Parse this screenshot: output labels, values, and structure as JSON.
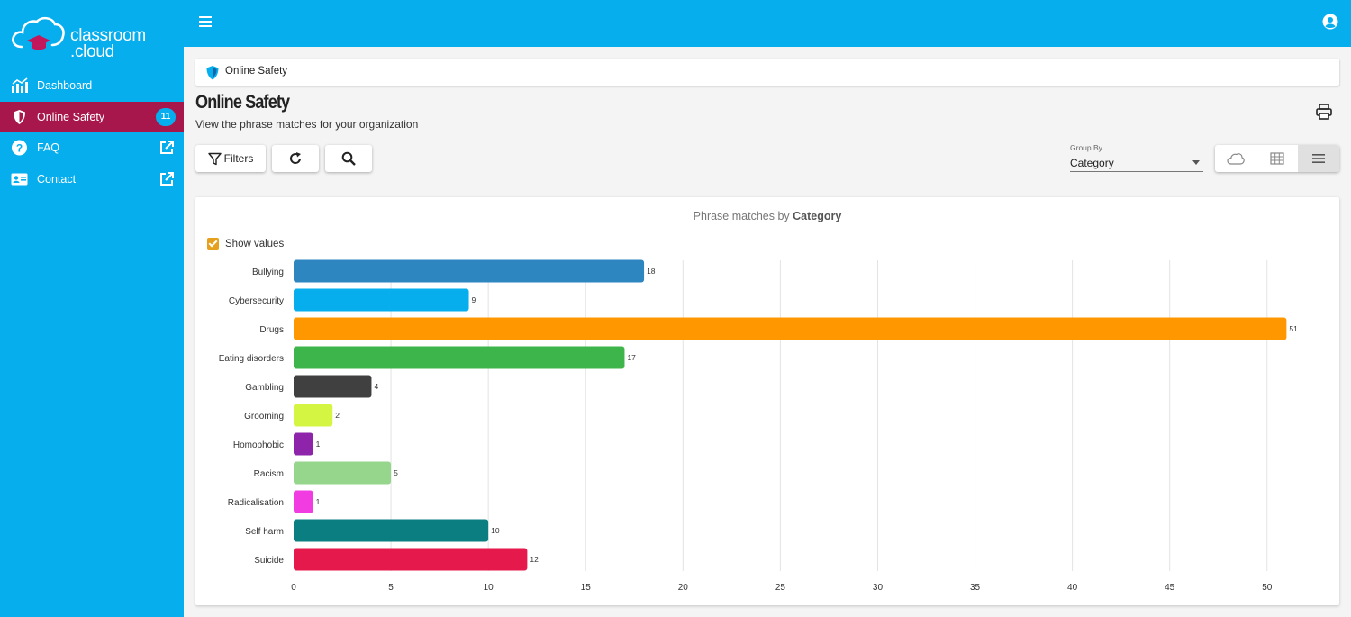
{
  "app": {
    "logo_line1": "classroom",
    "logo_line2": ".cloud"
  },
  "sidebar": {
    "items": [
      {
        "label": "Dashboard",
        "icon": "chart-icon"
      },
      {
        "label": "Online Safety",
        "icon": "shield-icon",
        "badge": "11",
        "active": true
      },
      {
        "label": "FAQ",
        "icon": "question-icon",
        "external": true
      },
      {
        "label": "Contact",
        "icon": "contact-card-icon",
        "external": true
      }
    ]
  },
  "breadcrumb": {
    "label": "Online Safety"
  },
  "page": {
    "title": "Online Safety",
    "subtitle": "View the phrase matches for your organization"
  },
  "toolbar": {
    "filters_label": "Filters"
  },
  "group_by": {
    "label": "Group By",
    "value": "Category"
  },
  "chart_card": {
    "title_prefix": "Phrase matches by",
    "title_bold": "Category",
    "show_values_label": "Show values",
    "show_values_checked": true
  },
  "colors": {
    "brand": "#06aeee",
    "active_nav": "#a8174b",
    "checkbox": "#e5a11d"
  },
  "chart_data": {
    "type": "bar",
    "orientation": "horizontal",
    "categories": [
      "Bullying",
      "Cybersecurity",
      "Drugs",
      "Eating disorders",
      "Gambling",
      "Grooming",
      "Homophobic",
      "Racism",
      "Radicalisation",
      "Self harm",
      "Suicide"
    ],
    "values": [
      18,
      9,
      51,
      17,
      4,
      2,
      1,
      5,
      1,
      10,
      12
    ],
    "colors": [
      "#2e86c1",
      "#06aeee",
      "#ff9800",
      "#3db54a",
      "#404040",
      "#d4f542",
      "#8e24aa",
      "#96d68c",
      "#f03ce0",
      "#0a7e80",
      "#e5194b"
    ],
    "xticks": [
      0,
      5,
      10,
      15,
      20,
      25,
      30,
      35,
      40,
      45,
      50
    ],
    "xlim": [
      0,
      52
    ],
    "grid": true,
    "show_values": true
  }
}
